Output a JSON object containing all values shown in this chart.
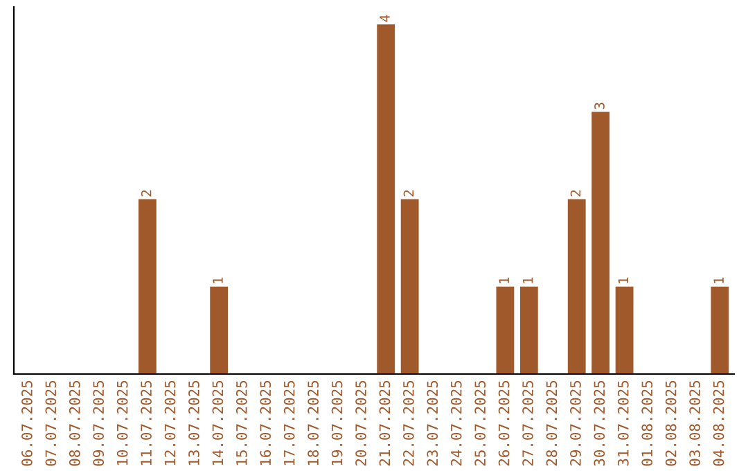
{
  "chart_data": {
    "type": "bar",
    "categories": [
      "06.07.2025",
      "07.07.2025",
      "08.07.2025",
      "09.07.2025",
      "10.07.2025",
      "11.07.2025",
      "12.07.2025",
      "13.07.2025",
      "14.07.2025",
      "15.07.2025",
      "16.07.2025",
      "17.07.2025",
      "18.07.2025",
      "19.07.2025",
      "20.07.2025",
      "21.07.2025",
      "22.07.2025",
      "23.07.2025",
      "24.07.2025",
      "25.07.2025",
      "26.07.2025",
      "27.07.2025",
      "28.07.2025",
      "29.07.2025",
      "30.07.2025",
      "31.07.2025",
      "01.08.2025",
      "02.08.2025",
      "03.08.2025",
      "04.08.2025"
    ],
    "values": [
      0,
      0,
      0,
      0,
      0,
      2,
      0,
      0,
      1,
      0,
      0,
      0,
      0,
      0,
      0,
      4,
      2,
      0,
      0,
      0,
      1,
      1,
      0,
      2,
      3,
      1,
      0,
      0,
      0,
      1
    ],
    "value_labels": [
      null,
      null,
      null,
      null,
      null,
      "2",
      null,
      null,
      "1",
      null,
      null,
      null,
      null,
      null,
      null,
      "4",
      "2",
      null,
      null,
      null,
      "1",
      "1",
      null,
      "2",
      "3",
      "1",
      null,
      null,
      null,
      "1"
    ],
    "color": "#a0592b",
    "ylim": [
      0,
      4.2
    ],
    "tick_labels": "x",
    "grid": false,
    "legend": false
  }
}
